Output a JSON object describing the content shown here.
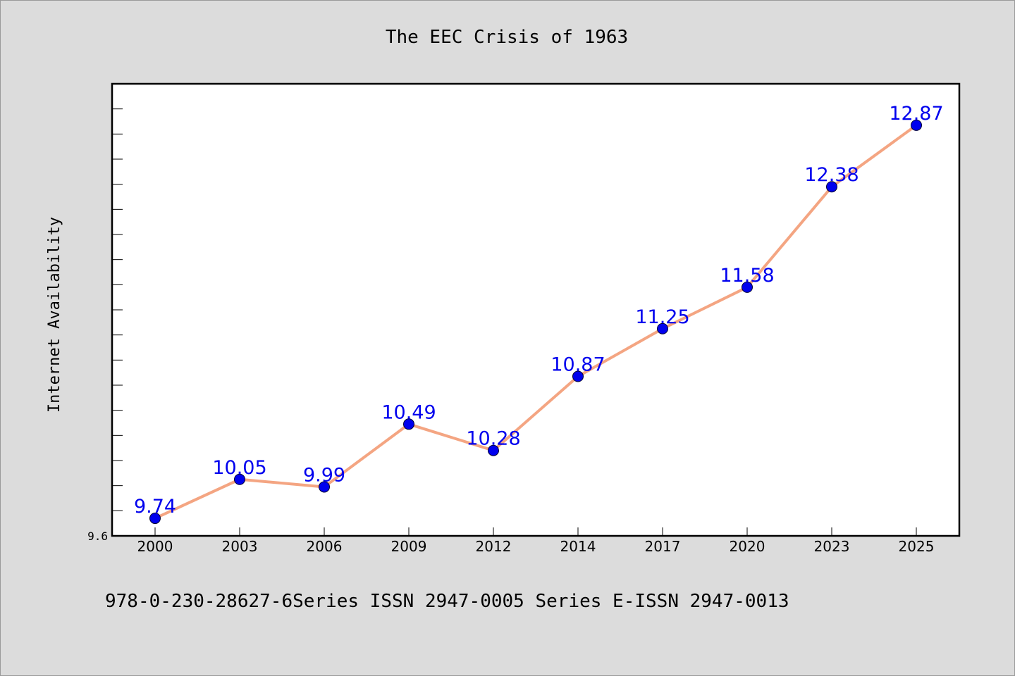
{
  "chart_data": {
    "type": "line",
    "title": "The EEC Crisis of 1963",
    "xlabel": "",
    "ylabel": "Internet Availability",
    "categories": [
      "2000",
      "2003",
      "2006",
      "2009",
      "2012",
      "2014",
      "2017",
      "2020",
      "2023",
      "2025"
    ],
    "series": [
      {
        "values": [
          9.74,
          10.05,
          9.99,
          10.49,
          10.28,
          10.87,
          11.25,
          11.58,
          12.38,
          12.87
        ],
        "line_color": "#f4a582",
        "marker_color": "#0000ee",
        "label_color": "#0000ee"
      }
    ],
    "y_tick_labels": [
      "9.6"
    ],
    "ylim": [
      9.6,
      13.2
    ],
    "grid": false,
    "legend": "none",
    "data_labels": true,
    "footer": "978-0-230-28627-6Series ISSN 2947-0005 Series E-ISSN 2947-0013"
  }
}
